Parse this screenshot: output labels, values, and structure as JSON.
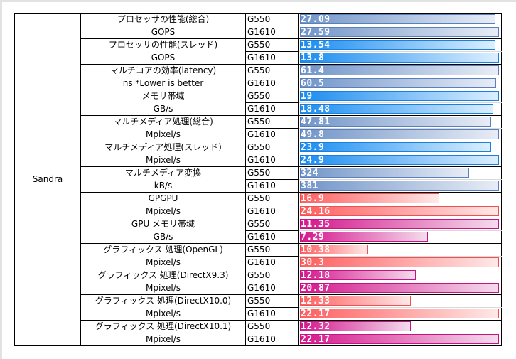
{
  "suite": "Sandra",
  "scale_max_note": "",
  "styles": {
    "gray_blue": {
      "from": "#7094c8",
      "to": "#e8edf6",
      "border": "#5a7fbd"
    },
    "blue": {
      "from": "#1a8cf0",
      "to": "#dcefff",
      "border": "#1a80e0"
    },
    "red": {
      "from": "#ff5e5e",
      "to": "#ffe8e8",
      "border": "#f05050"
    },
    "magenta": {
      "from": "#d4168c",
      "to": "#f4dcee",
      "border": "#c8127f"
    }
  },
  "chart_data": {
    "type": "bar",
    "title": "",
    "series_names": [
      "G550",
      "G1610"
    ],
    "groups": [
      {
        "name": "プロセッサの性能(総合)",
        "unit": "GOPS",
        "style": "gray_blue",
        "values": [
          27.09,
          27.59
        ]
      },
      {
        "name": "プロセッサの性能(スレッド)",
        "unit": "GOPS",
        "style": "blue",
        "values": [
          13.54,
          13.8
        ]
      },
      {
        "name": "マルチコアの効率(latency)",
        "unit": "ns *Lower is better",
        "style": "gray_blue",
        "values": [
          61.4,
          60.5
        ]
      },
      {
        "name": "メモリ帯域",
        "unit": "GB/s",
        "style": "blue",
        "values": [
          19,
          18.48
        ]
      },
      {
        "name": "マルチメディア処理(総合)",
        "unit": "Mpixel/s",
        "style": "gray_blue",
        "values": [
          47.81,
          49.8
        ]
      },
      {
        "name": "マルチメディア処理(スレッド)",
        "unit": "Mpixel/s",
        "style": "blue",
        "values": [
          23.9,
          24.9
        ]
      },
      {
        "name": "マルチメディア変換",
        "unit": "kB/s",
        "style": "gray_blue",
        "values": [
          324,
          381
        ]
      },
      {
        "name": "GPGPU",
        "unit": "Mpixel/s",
        "style": "red",
        "values": [
          16.9,
          24.16
        ]
      },
      {
        "name": "GPU メモリ帯域",
        "unit": "GB/s",
        "style": "magenta",
        "values": [
          11.35,
          7.29
        ]
      },
      {
        "name": "グラフィックス 処理(OpenGL)",
        "unit": "Mpixel/s",
        "style": "red",
        "values": [
          10.38,
          30.3
        ]
      },
      {
        "name": "グラフィックス 処理(DirectX9.3)",
        "unit": "Mpixel/s",
        "style": "magenta",
        "values": [
          12.18,
          20.87
        ]
      },
      {
        "name": "グラフィックス 処理(DirectX10.0)",
        "unit": "Mpixel/s",
        "style": "red",
        "values": [
          12.33,
          22.17
        ]
      },
      {
        "name": "グラフィックス 処理(DirectX10.1)",
        "unit": "Mpixel/s",
        "style": "magenta",
        "values": [
          12.32,
          22.17
        ]
      }
    ]
  }
}
